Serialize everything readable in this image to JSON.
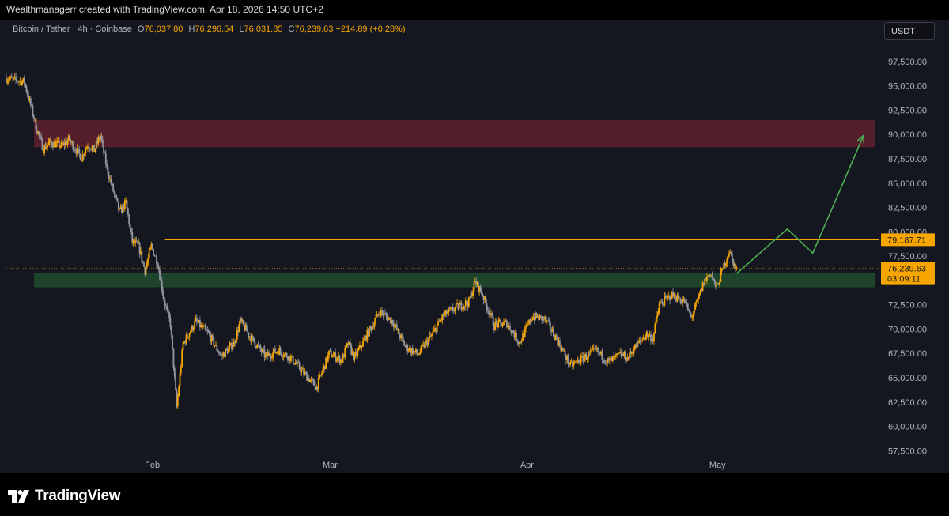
{
  "header": {
    "attribution": "Wealthmanagerr created with TradingView.com, Apr 18, 2026 14:50 UTC+2"
  },
  "legend": {
    "symbol": "Bitcoin / Tether · 4h · Coinbase",
    "open_label": "O",
    "open": "76,037.80",
    "high_label": "H",
    "high": "76,296.54",
    "low_label": "L",
    "low": "76,031.85",
    "close_label": "C",
    "close": "76,239.63",
    "change": "+214.89 (+0.28%)"
  },
  "currency_button": "USDT",
  "footer": {
    "brand": "TradingView"
  },
  "colors": {
    "background": "#141720",
    "candle_up": "#f7a600",
    "candle_down": "#9598a1",
    "resistance_zone": "#5b1f2b",
    "support_zone": "#1f4a2e",
    "level_line": "#f7a600",
    "projection": "#4caf50"
  },
  "chart_data": {
    "type": "candlestick",
    "timeframe": "4h",
    "x_range": [
      "2026-01-09",
      "2026-05-26"
    ],
    "x_tick_labels": [
      {
        "date": "2026-02-01",
        "label": "Feb"
      },
      {
        "date": "2026-03-01",
        "label": "Mar"
      },
      {
        "date": "2026-04-01",
        "label": "Apr"
      },
      {
        "date": "2026-05-01",
        "label": "May"
      }
    ],
    "ylim": [
      55900,
      99200
    ],
    "y_ticks": [
      57500,
      60000,
      62500,
      65000,
      67500,
      70000,
      72500,
      75000,
      77500,
      80000,
      82500,
      85000,
      87500,
      90000,
      92500,
      95000,
      97500
    ],
    "y_tick_labels": [
      "57,500.00",
      "60,000.00",
      "62,500.00",
      "65,000.00",
      "67,500.00",
      "70,000.00",
      "72,500.00",
      "75,000.00",
      "77,500.00",
      "80,000.00",
      "82,500.00",
      "85,000.00",
      "87,500.00",
      "90,000.00",
      "92,500.00",
      "95,000.00",
      "97,500.00"
    ],
    "price_path": [
      {
        "date": "2026-01-09",
        "price": 95800
      },
      {
        "date": "2026-01-12",
        "price": 95400
      },
      {
        "date": "2026-01-13",
        "price": 93000
      },
      {
        "date": "2026-01-14",
        "price": 90500
      },
      {
        "date": "2026-01-15",
        "price": 88500
      },
      {
        "date": "2026-01-16",
        "price": 89200
      },
      {
        "date": "2026-01-18",
        "price": 88800
      },
      {
        "date": "2026-01-19",
        "price": 89500
      },
      {
        "date": "2026-01-21",
        "price": 87600
      },
      {
        "date": "2026-01-22",
        "price": 89000
      },
      {
        "date": "2026-01-23",
        "price": 88400
      },
      {
        "date": "2026-01-24",
        "price": 89900
      },
      {
        "date": "2026-01-25",
        "price": 86500
      },
      {
        "date": "2026-01-26",
        "price": 84200
      },
      {
        "date": "2026-01-27",
        "price": 82000
      },
      {
        "date": "2026-01-28",
        "price": 83000
      },
      {
        "date": "2026-01-29",
        "price": 79000
      },
      {
        "date": "2026-01-30",
        "price": 78500
      },
      {
        "date": "2026-01-31",
        "price": 76000
      },
      {
        "date": "2026-02-01",
        "price": 78500
      },
      {
        "date": "2026-02-02",
        "price": 76800
      },
      {
        "date": "2026-02-03",
        "price": 73000
      },
      {
        "date": "2026-02-04",
        "price": 70500
      },
      {
        "date": "2026-02-05",
        "price": 62000
      },
      {
        "date": "2026-02-06",
        "price": 68500
      },
      {
        "date": "2026-02-08",
        "price": 70800
      },
      {
        "date": "2026-02-10",
        "price": 69500
      },
      {
        "date": "2026-02-12",
        "price": 67200
      },
      {
        "date": "2026-02-14",
        "price": 68500
      },
      {
        "date": "2026-02-15",
        "price": 70800
      },
      {
        "date": "2026-02-17",
        "price": 68800
      },
      {
        "date": "2026-02-19",
        "price": 67200
      },
      {
        "date": "2026-02-21",
        "price": 67800
      },
      {
        "date": "2026-02-23",
        "price": 67000
      },
      {
        "date": "2026-02-25",
        "price": 65500
      },
      {
        "date": "2026-02-27",
        "price": 64000
      },
      {
        "date": "2026-03-01",
        "price": 67500
      },
      {
        "date": "2026-03-03",
        "price": 66800
      },
      {
        "date": "2026-03-04",
        "price": 68500
      },
      {
        "date": "2026-03-05",
        "price": 67000
      },
      {
        "date": "2026-03-07",
        "price": 69500
      },
      {
        "date": "2026-03-09",
        "price": 71800
      },
      {
        "date": "2026-03-11",
        "price": 70800
      },
      {
        "date": "2026-03-13",
        "price": 68200
      },
      {
        "date": "2026-03-15",
        "price": 67400
      },
      {
        "date": "2026-03-17",
        "price": 69200
      },
      {
        "date": "2026-03-19",
        "price": 71400
      },
      {
        "date": "2026-03-21",
        "price": 72200
      },
      {
        "date": "2026-03-23",
        "price": 72800
      },
      {
        "date": "2026-03-24",
        "price": 74800
      },
      {
        "date": "2026-03-25",
        "price": 73800
      },
      {
        "date": "2026-03-27",
        "price": 70400
      },
      {
        "date": "2026-03-29",
        "price": 70600
      },
      {
        "date": "2026-03-31",
        "price": 68600
      },
      {
        "date": "2026-04-02",
        "price": 71300
      },
      {
        "date": "2026-04-04",
        "price": 71000
      },
      {
        "date": "2026-04-06",
        "price": 68800
      },
      {
        "date": "2026-04-08",
        "price": 66200
      },
      {
        "date": "2026-04-10",
        "price": 67000
      },
      {
        "date": "2026-04-12",
        "price": 67800
      },
      {
        "date": "2026-04-14",
        "price": 66600
      },
      {
        "date": "2026-04-16",
        "price": 67400
      },
      {
        "date": "2026-04-17",
        "price": 67000
      },
      {
        "date": "2026-04-18",
        "price": 68000
      },
      {
        "date": "2026-04-20",
        "price": 69500
      },
      {
        "date": "2026-04-21",
        "price": 69000
      },
      {
        "date": "2026-04-22",
        "price": 72500
      },
      {
        "date": "2026-04-24",
        "price": 73500
      },
      {
        "date": "2026-04-26",
        "price": 72800
      },
      {
        "date": "2026-04-27",
        "price": 71200
      },
      {
        "date": "2026-04-28",
        "price": 72800
      },
      {
        "date": "2026-04-29",
        "price": 74800
      },
      {
        "date": "2026-04-30",
        "price": 75800
      },
      {
        "date": "2026-05-01",
        "price": 74200
      },
      {
        "date": "2026-05-02",
        "price": 76200
      },
      {
        "date": "2026-05-03",
        "price": 78000
      },
      {
        "date": "2026-05-04",
        "price": 76240
      }
    ],
    "zones": [
      {
        "name": "resistance",
        "from": 88700,
        "to": 91500
      },
      {
        "name": "support",
        "from": 74300,
        "to": 75800
      }
    ],
    "horizontal_levels": [
      {
        "price": 79187.71,
        "label": "79,187.71"
      }
    ],
    "current_price": {
      "price": 76239.63,
      "label": "76,239.63",
      "countdown": "03:09:11"
    },
    "projection_path": [
      {
        "date": "2026-05-04",
        "price": 75700
      },
      {
        "date": "2026-05-12",
        "price": 80300
      },
      {
        "date": "2026-05-16",
        "price": 77800
      },
      {
        "date": "2026-05-24",
        "price": 89900
      }
    ]
  }
}
